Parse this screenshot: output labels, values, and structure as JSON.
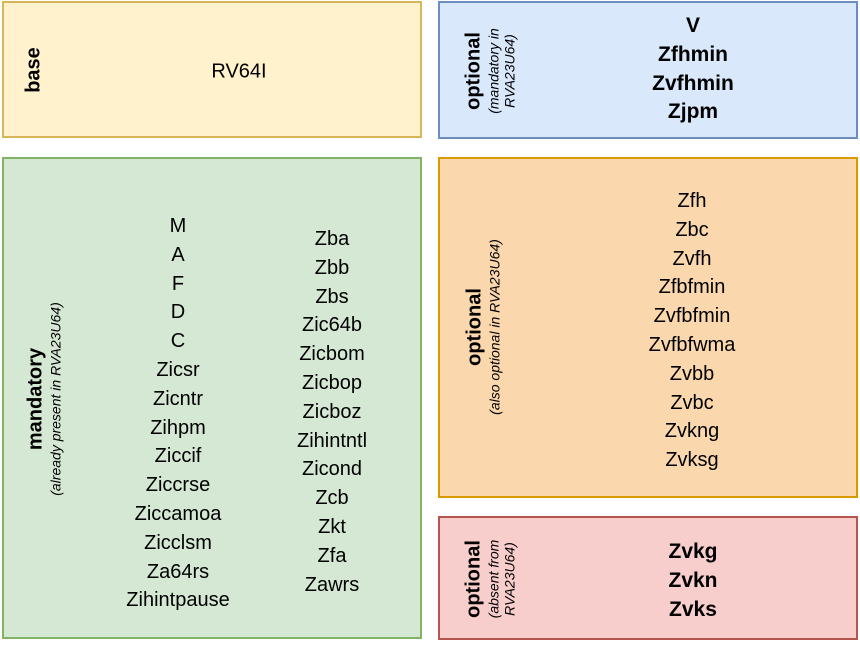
{
  "base": {
    "label": "base",
    "value": "RV64I"
  },
  "optional_mandatory_in": {
    "label": "optional",
    "note_line1": "(mandatory in",
    "note_line2": "RVA23U64)",
    "items": [
      "V",
      "Zfhmin",
      "Zvfhmin",
      "Zjpm"
    ]
  },
  "mandatory": {
    "label": "mandatory",
    "note": "(already present in RVA23U64)",
    "column1": [
      "M",
      "A",
      "F",
      "D",
      "C",
      "Zicsr",
      "Zicntr",
      "Zihpm",
      "Ziccif",
      "Ziccrse",
      "Ziccamoa",
      "Zicclsm",
      "Za64rs",
      "Zihintpause"
    ],
    "column2": [
      "Zba",
      "Zbb",
      "Zbs",
      "Zic64b",
      "Zicbom",
      "Zicbop",
      "Zicboz",
      "Zihintntl",
      "Zicond",
      "Zcb",
      "Zkt",
      "Zfa",
      "Zawrs"
    ]
  },
  "optional_also_optional": {
    "label": "optional",
    "note": "(also optional in RVA23U64)",
    "items": [
      "Zfh",
      "Zbc",
      "Zvfh",
      "Zfbfmin",
      "Zvfbfmin",
      "Zvfbfwma",
      "Zvbb",
      "Zvbc",
      "Zvkng",
      "Zvksg"
    ]
  },
  "optional_absent": {
    "label": "optional",
    "note_line1": "(absent from",
    "note_line2": "RVA23U64)",
    "items": [
      "Zvkg",
      "Zvkn",
      "Zvks"
    ]
  }
}
